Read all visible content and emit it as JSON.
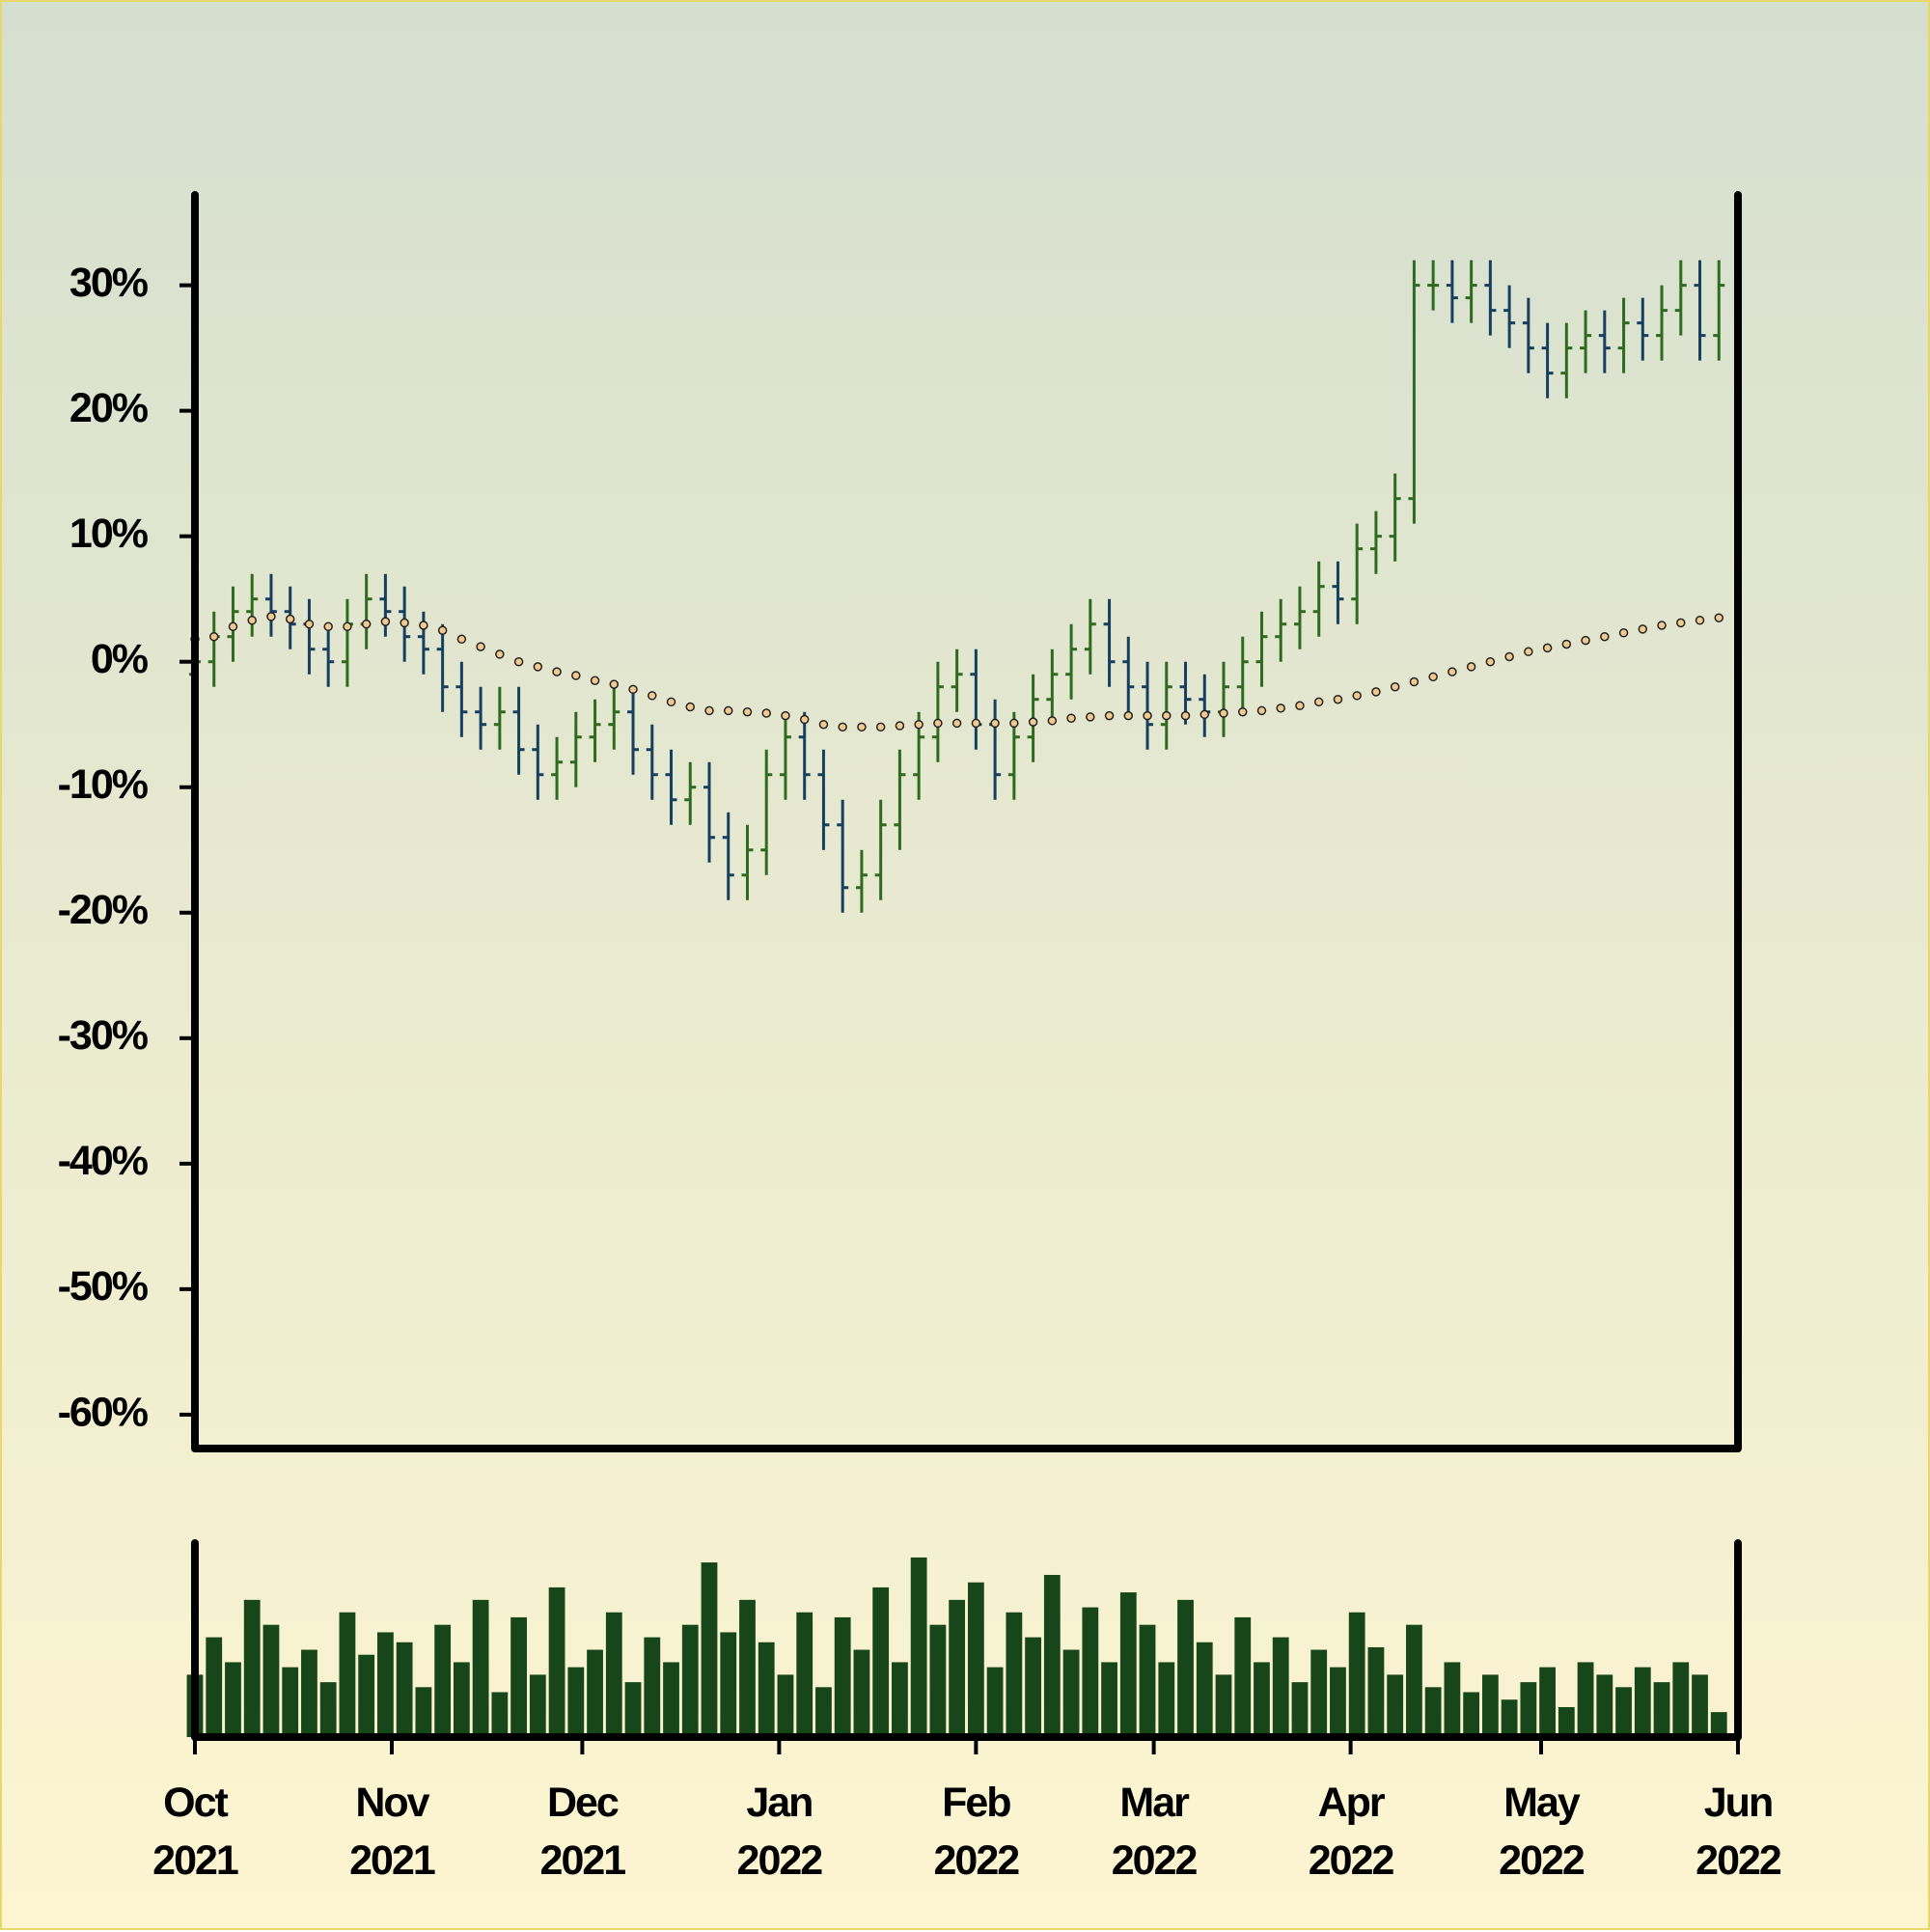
{
  "chart_data": {
    "type": "ohlc",
    "x": [
      0,
      3,
      6,
      9,
      12,
      15,
      18,
      21,
      24,
      27,
      30,
      33,
      36,
      39,
      42,
      45,
      48,
      51,
      54,
      57,
      60,
      63,
      66,
      69,
      72,
      75,
      78,
      81,
      84,
      87,
      90,
      93,
      96,
      99,
      102,
      105,
      108,
      111,
      114,
      117,
      120,
      123,
      126,
      129,
      132,
      135,
      138,
      141,
      144,
      147,
      150,
      153,
      156,
      159,
      162,
      165,
      168,
      171,
      174,
      177,
      180,
      183,
      186,
      189,
      192,
      195,
      198,
      201,
      204,
      207,
      210,
      213,
      216,
      219,
      222,
      225,
      228,
      231,
      234,
      237,
      240
    ],
    "open": [
      -1,
      0,
      2,
      4,
      5,
      4,
      3,
      1,
      0,
      3,
      5,
      4,
      2,
      1,
      -2,
      -4,
      -5,
      -4,
      -7,
      -9,
      -8,
      -6,
      -5,
      -4,
      -7,
      -9,
      -11,
      -10,
      -14,
      -17,
      -15,
      -9,
      -6,
      -9,
      -13,
      -18,
      -17,
      -13,
      -9,
      -6,
      -2,
      -1,
      -5,
      -9,
      -6,
      -3,
      -1,
      1,
      3,
      0,
      -2,
      -5,
      -2,
      -3,
      -4,
      -2,
      0,
      2,
      3,
      4,
      6,
      5,
      9,
      10,
      13,
      30,
      30,
      29,
      30,
      28,
      27,
      25,
      23,
      25,
      26,
      25,
      27,
      26,
      28,
      30,
      26
    ],
    "high": [
      2,
      4,
      6,
      7,
      7,
      6,
      5,
      3,
      5,
      7,
      7,
      6,
      4,
      3,
      0,
      -2,
      -2,
      -2,
      -5,
      -6,
      -4,
      -3,
      -2,
      -2,
      -5,
      -7,
      -8,
      -8,
      -12,
      -13,
      -7,
      -4,
      -4,
      -7,
      -11,
      -15,
      -11,
      -7,
      -4,
      0,
      1,
      1,
      -3,
      -4,
      -1,
      1,
      3,
      5,
      5,
      2,
      0,
      0,
      0,
      -1,
      0,
      2,
      4,
      5,
      6,
      8,
      8,
      11,
      12,
      15,
      32,
      32,
      32,
      32,
      32,
      30,
      29,
      27,
      27,
      28,
      28,
      29,
      29,
      30,
      32,
      32,
      32
    ],
    "low": [
      -3,
      -2,
      0,
      2,
      2,
      1,
      -1,
      -2,
      -2,
      1,
      2,
      0,
      -1,
      -4,
      -6,
      -7,
      -7,
      -9,
      -11,
      -11,
      -10,
      -8,
      -7,
      -9,
      -11,
      -13,
      -13,
      -16,
      -19,
      -19,
      -17,
      -11,
      -11,
      -15,
      -20,
      -20,
      -19,
      -15,
      -11,
      -8,
      -4,
      -7,
      -11,
      -11,
      -8,
      -5,
      -3,
      -1,
      -2,
      -4,
      -7,
      -7,
      -5,
      -6,
      -6,
      -4,
      -2,
      0,
      1,
      2,
      3,
      3,
      7,
      8,
      11,
      28,
      27,
      27,
      26,
      25,
      23,
      21,
      21,
      23,
      23,
      23,
      24,
      24,
      26,
      24,
      24
    ],
    "close": [
      0,
      2,
      4,
      5,
      4,
      3,
      1,
      0,
      3,
      5,
      4,
      2,
      1,
      -2,
      -4,
      -5,
      -4,
      -7,
      -9,
      -8,
      -6,
      -5,
      -4,
      -7,
      -9,
      -11,
      -10,
      -14,
      -17,
      -15,
      -9,
      -6,
      -9,
      -13,
      -18,
      -17,
      -13,
      -9,
      -6,
      -2,
      -1,
      -5,
      -9,
      -6,
      -3,
      -1,
      1,
      3,
      0,
      -2,
      -5,
      -2,
      -3,
      -4,
      -2,
      0,
      2,
      3,
      4,
      6,
      5,
      9,
      10,
      13,
      30,
      30,
      29,
      30,
      28,
      27,
      25,
      23,
      25,
      26,
      25,
      27,
      26,
      28,
      30,
      26,
      30
    ],
    "up_color": "#2f6b1f",
    "down_color": "#173f5f",
    "moving_average": {
      "color": "#f2c98e",
      "values": [
        1.8,
        2,
        2.8,
        3.3,
        3.6,
        3.4,
        3,
        2.8,
        2.8,
        3,
        3.2,
        3.1,
        2.9,
        2.5,
        1.8,
        1.2,
        0.6,
        0,
        -0.4,
        -0.8,
        -1.1,
        -1.5,
        -1.8,
        -2.2,
        -2.7,
        -3.2,
        -3.6,
        -3.9,
        -3.9,
        -4,
        -4.1,
        -4.3,
        -4.6,
        -5,
        -5.2,
        -5.2,
        -5.2,
        -5.1,
        -5,
        -4.9,
        -4.9,
        -4.9,
        -4.9,
        -4.9,
        -4.8,
        -4.7,
        -4.5,
        -4.4,
        -4.3,
        -4.3,
        -4.3,
        -4.3,
        -4.3,
        -4.2,
        -4.1,
        -4,
        -3.9,
        -3.7,
        -3.5,
        -3.2,
        -3,
        -2.7,
        -2.4,
        -2,
        -1.6,
        -1.2,
        -0.8,
        -0.4,
        0,
        0.4,
        0.8,
        1.1,
        1.4,
        1.7,
        2,
        2.3,
        2.6,
        2.9,
        3.1,
        3.3,
        3.5
      ]
    },
    "volume": {
      "color": "#17461a",
      "values": [
        25,
        40,
        30,
        55,
        45,
        28,
        35,
        22,
        50,
        33,
        42,
        38,
        20,
        45,
        30,
        55,
        18,
        48,
        25,
        60,
        28,
        35,
        50,
        22,
        40,
        30,
        45,
        70,
        42,
        55,
        38,
        25,
        50,
        20,
        48,
        35,
        60,
        30,
        72,
        45,
        55,
        62,
        28,
        50,
        40,
        65,
        35,
        52,
        30,
        58,
        45,
        30,
        55,
        38,
        25,
        48,
        30,
        40,
        22,
        35,
        28,
        50,
        36,
        25,
        45,
        20,
        30,
        18,
        25,
        15,
        22,
        28,
        12,
        30,
        25,
        20,
        28,
        22,
        30,
        25,
        10
      ]
    },
    "xlim": [
      0,
      243
    ],
    "xticks": [
      {
        "value": 0,
        "label": "Oct\n2021"
      },
      {
        "value": 31,
        "label": "Nov\n2021"
      },
      {
        "value": 61,
        "label": "Dec\n2021"
      },
      {
        "value": 92,
        "label": "Jan\n2022"
      },
      {
        "value": 123,
        "label": "Feb\n2022"
      },
      {
        "value": 151,
        "label": "Mar\n2022"
      },
      {
        "value": 182,
        "label": "Apr\n2022"
      },
      {
        "value": 212,
        "label": "May\n2022"
      },
      {
        "value": 243,
        "label": "Jun\n2022"
      }
    ],
    "ylim": [
      -62.7,
      37.2
    ],
    "yticks": [
      {
        "value": 30,
        "label": "30%"
      },
      {
        "value": 20,
        "label": "20%"
      },
      {
        "value": 10,
        "label": "10%"
      },
      {
        "value": 0,
        "label": "0%"
      },
      {
        "value": -10,
        "label": "-10%"
      },
      {
        "value": -20,
        "label": "-20%"
      },
      {
        "value": -30,
        "label": "-30%"
      },
      {
        "value": -40,
        "label": "-40%"
      },
      {
        "value": -50,
        "label": "-50%"
      },
      {
        "value": -60,
        "label": "-60%"
      }
    ]
  }
}
